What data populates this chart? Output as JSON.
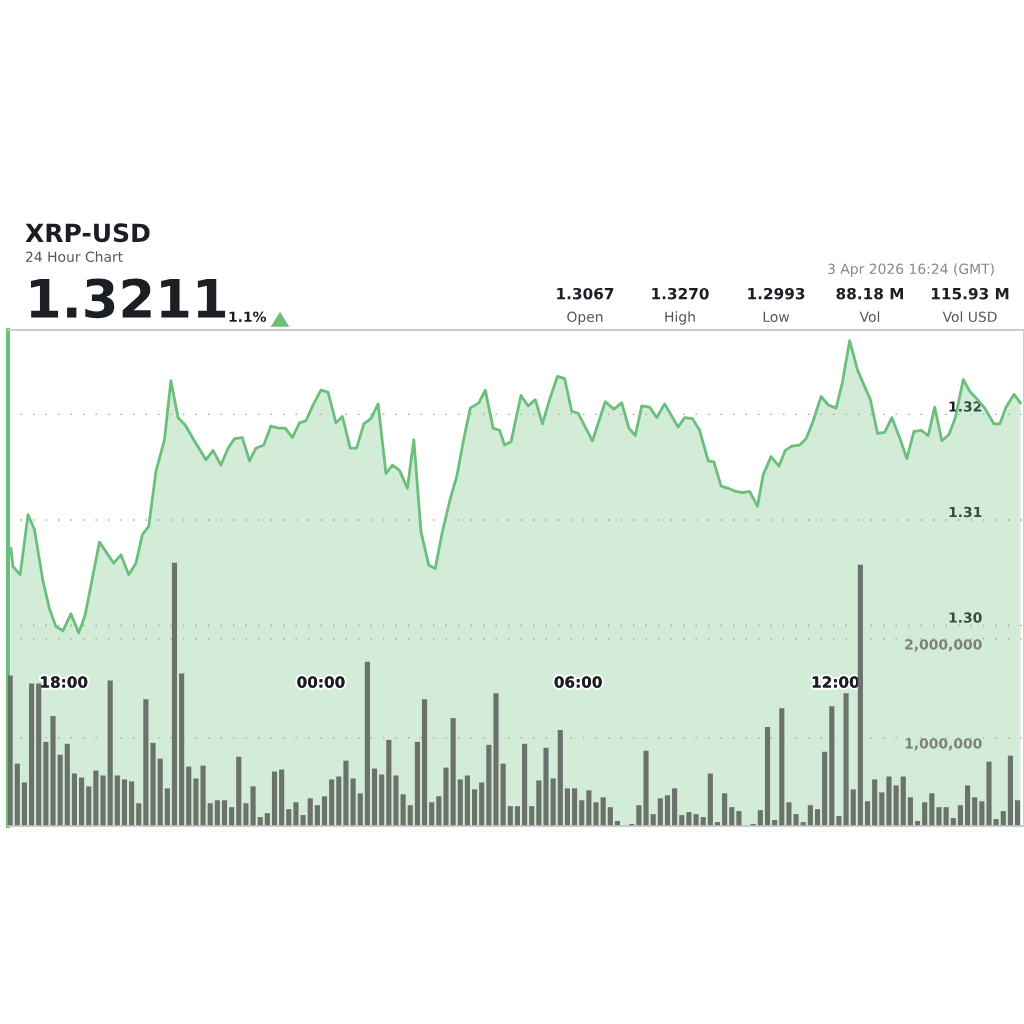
{
  "chart_data": {
    "type": "area",
    "title": "XRP-USD",
    "subtitle": "24 Hour Chart",
    "annotations": [
      "1.3211",
      "1.1%",
      "1.3067",
      "Open",
      "1.3270",
      "High",
      "1.2993",
      "Low",
      "88.18 M",
      "Vol",
      "115.93 M",
      "Vol USD",
      "3 Apr 2026 16:24 (GMT)"
    ],
    "xlim": [
      "2026-04-02T16:42",
      "2026-04-03T16:24"
    ],
    "xticks": [
      {
        "value": "2026-04-02T18:00",
        "label": "18:00"
      },
      {
        "value": "2026-04-03T00:00",
        "label": "00:00"
      },
      {
        "value": "2026-04-03T06:00",
        "label": "06:00"
      },
      {
        "value": "2026-04-03T12:00",
        "label": "12:00"
      }
    ],
    "ylim": [
      1.281,
      1.328
    ],
    "yticks": [
      {
        "value": 1.3,
        "label": "1.30"
      },
      {
        "value": 1.31,
        "label": "1.31"
      },
      {
        "value": 1.32,
        "label": "1.32"
      }
    ],
    "y2lim": [
      110000,
      5120000
    ],
    "y2ticks": [
      {
        "value": 1000000,
        "label": "1,000,000"
      },
      {
        "value": 2000000,
        "label": "2,000,000"
      }
    ],
    "grid": "y",
    "marker": "none",
    "line_style": "solid",
    "series": [
      {
        "color": "#6abf7b",
        "x": [
          "2026-04-02T16:46",
          "2026-04-02T16:49",
          "2026-04-02T16:59",
          "2026-04-02T17:10",
          "2026-04-02T17:19",
          "2026-04-02T17:31",
          "2026-04-02T17:40",
          "2026-04-02T17:49",
          "2026-04-02T17:59",
          "2026-04-02T18:10",
          "2026-04-02T18:21",
          "2026-04-02T18:30",
          "2026-04-02T18:50",
          "2026-04-02T19:10",
          "2026-04-02T19:20",
          "2026-04-02T19:31",
          "2026-04-02T19:41",
          "2026-04-02T19:50",
          "2026-04-02T19:59",
          "2026-04-02T20:09",
          "2026-04-02T20:21",
          "2026-04-02T20:30",
          "2026-04-02T20:40",
          "2026-04-02T20:50",
          "2026-04-02T21:02",
          "2026-04-02T21:19",
          "2026-04-02T21:29",
          "2026-04-02T21:40",
          "2026-04-02T21:50",
          "2026-04-02T21:59",
          "2026-04-02T22:10",
          "2026-04-02T22:20",
          "2026-04-02T22:29",
          "2026-04-02T22:40",
          "2026-04-02T22:50",
          "2026-04-02T23:00",
          "2026-04-02T23:10",
          "2026-04-02T23:20",
          "2026-04-02T23:30",
          "2026-04-02T23:39",
          "2026-04-02T23:49",
          "2026-04-03T00:00",
          "2026-04-03T00:10",
          "2026-04-03T00:21",
          "2026-04-03T00:30",
          "2026-04-03T00:41",
          "2026-04-03T00:50",
          "2026-04-03T01:00",
          "2026-04-03T01:10",
          "2026-04-03T01:20",
          "2026-04-03T01:31",
          "2026-04-03T01:40",
          "2026-04-03T01:50",
          "2026-04-03T02:01",
          "2026-04-03T02:10",
          "2026-04-03T02:20",
          "2026-04-03T02:31",
          "2026-04-03T02:40",
          "2026-04-03T02:50",
          "2026-04-03T03:01",
          "2026-04-03T03:10",
          "2026-04-03T03:20",
          "2026-04-03T03:29",
          "2026-04-03T03:41",
          "2026-04-03T03:50",
          "2026-04-03T04:01",
          "2026-04-03T04:10",
          "2026-04-03T04:17",
          "2026-04-03T04:26",
          "2026-04-03T04:40",
          "2026-04-03T04:50",
          "2026-04-03T05:00",
          "2026-04-03T05:10",
          "2026-04-03T05:20",
          "2026-04-03T05:31",
          "2026-04-03T05:41",
          "2026-04-03T05:51",
          "2026-04-03T06:00",
          "2026-04-03T06:20",
          "2026-04-03T06:38",
          "2026-04-03T06:50",
          "2026-04-03T07:01",
          "2026-04-03T07:11",
          "2026-04-03T07:20",
          "2026-04-03T07:29",
          "2026-04-03T07:40",
          "2026-04-03T07:50",
          "2026-04-03T08:01",
          "2026-04-03T08:20",
          "2026-04-03T08:29",
          "2026-04-03T08:40",
          "2026-04-03T08:50",
          "2026-04-03T09:02",
          "2026-04-03T09:10",
          "2026-04-03T09:20",
          "2026-04-03T09:30",
          "2026-04-03T09:41",
          "2026-04-03T09:50",
          "2026-04-03T10:00",
          "2026-04-03T10:11",
          "2026-04-03T10:19",
          "2026-04-03T10:30",
          "2026-04-03T10:41",
          "2026-04-03T10:50",
          "2026-04-03T10:59",
          "2026-04-03T11:10",
          "2026-04-03T11:19",
          "2026-04-03T11:28",
          "2026-04-03T11:40",
          "2026-04-03T11:50",
          "2026-04-03T12:01",
          "2026-04-03T12:10",
          "2026-04-03T12:20",
          "2026-04-03T12:31",
          "2026-04-03T12:40",
          "2026-04-03T12:49",
          "2026-04-03T12:59",
          "2026-04-03T13:09",
          "2026-04-03T13:19",
          "2026-04-03T13:31",
          "2026-04-03T13:40",
          "2026-04-03T13:50",
          "2026-04-03T14:00",
          "2026-04-03T14:10",
          "2026-04-03T14:19",
          "2026-04-03T14:29",
          "2026-04-03T14:39",
          "2026-04-03T14:48",
          "2026-04-03T14:59",
          "2026-04-03T15:08",
          "2026-04-03T15:19",
          "2026-04-03T15:29",
          "2026-04-03T15:42",
          "2026-04-03T15:50",
          "2026-04-03T15:59",
          "2026-04-03T16:10",
          "2026-04-03T16:19"
        ],
        "values": [
          1.3073,
          1.3056,
          1.3048,
          1.3105,
          1.3091,
          1.3042,
          1.3016,
          1.2999,
          1.2995,
          1.3011,
          1.2993,
          1.301,
          1.3079,
          1.3059,
          1.3067,
          1.3048,
          1.3059,
          1.3086,
          1.3094,
          1.3146,
          1.3176,
          1.3232,
          1.3197,
          1.319,
          1.3176,
          1.3157,
          1.3166,
          1.3152,
          1.3168,
          1.3177,
          1.3178,
          1.3156,
          1.3168,
          1.3171,
          1.3189,
          1.3187,
          1.3187,
          1.3178,
          1.3192,
          1.3194,
          1.3209,
          1.3223,
          1.3221,
          1.3192,
          1.3198,
          1.3168,
          1.3168,
          1.3191,
          1.3196,
          1.321,
          1.3144,
          1.3152,
          1.3147,
          1.313,
          1.3176,
          1.3089,
          1.3057,
          1.3054,
          1.3089,
          1.312,
          1.3141,
          1.3177,
          1.3206,
          1.3211,
          1.3223,
          1.3187,
          1.3185,
          1.3171,
          1.3174,
          1.3218,
          1.3208,
          1.3214,
          1.3191,
          1.3214,
          1.3236,
          1.3234,
          1.3203,
          1.3201,
          1.3175,
          1.3212,
          1.3205,
          1.3211,
          1.3187,
          1.318,
          1.3208,
          1.3207,
          1.3197,
          1.321,
          1.3188,
          1.3197,
          1.3196,
          1.3185,
          1.3156,
          1.3155,
          1.3132,
          1.313,
          1.3127,
          1.3126,
          1.3127,
          1.3113,
          1.3143,
          1.316,
          1.3151,
          1.3166,
          1.317,
          1.3171,
          1.3177,
          1.3192,
          1.3217,
          1.3209,
          1.3206,
          1.3231,
          1.327,
          1.3242,
          1.3228,
          1.3214,
          1.3182,
          1.3183,
          1.3197,
          1.3176,
          1.3158,
          1.3184,
          1.3185,
          1.318,
          1.3207,
          1.3175,
          1.3181,
          1.3197,
          1.3233,
          1.3222,
          1.3214,
          1.3206,
          1.3191,
          1.3191,
          1.3207,
          1.3219,
          1.3211
        ]
      },
      {
        "type": "bar",
        "axis": "y2",
        "color": "#6b716b",
        "x": [
          "2026-04-02T16:45",
          "2026-04-02T16:55",
          "2026-04-02T17:05",
          "2026-04-02T17:15",
          "2026-04-02T17:25",
          "2026-04-02T17:35",
          "2026-04-02T17:45",
          "2026-04-02T17:55",
          "2026-04-02T18:05",
          "2026-04-02T18:15",
          "2026-04-02T18:25",
          "2026-04-02T18:35",
          "2026-04-02T18:45",
          "2026-04-02T18:55",
          "2026-04-02T19:05",
          "2026-04-02T19:15",
          "2026-04-02T19:25",
          "2026-04-02T19:35",
          "2026-04-02T19:45",
          "2026-04-02T19:55",
          "2026-04-02T20:05",
          "2026-04-02T20:15",
          "2026-04-02T20:25",
          "2026-04-02T20:35",
          "2026-04-02T20:45",
          "2026-04-02T20:55",
          "2026-04-02T21:05",
          "2026-04-02T21:15",
          "2026-04-02T21:25",
          "2026-04-02T21:35",
          "2026-04-02T21:45",
          "2026-04-02T21:55",
          "2026-04-02T22:05",
          "2026-04-02T22:15",
          "2026-04-02T22:25",
          "2026-04-02T22:35",
          "2026-04-02T22:45",
          "2026-04-02T22:55",
          "2026-04-02T23:05",
          "2026-04-02T23:15",
          "2026-04-02T23:25",
          "2026-04-02T23:35",
          "2026-04-02T23:45",
          "2026-04-02T23:55",
          "2026-04-03T00:05",
          "2026-04-03T00:15",
          "2026-04-03T00:25",
          "2026-04-03T00:35",
          "2026-04-03T00:45",
          "2026-04-03T00:55",
          "2026-04-03T01:05",
          "2026-04-03T01:15",
          "2026-04-03T01:25",
          "2026-04-03T01:35",
          "2026-04-03T01:45",
          "2026-04-03T01:55",
          "2026-04-03T02:05",
          "2026-04-03T02:15",
          "2026-04-03T02:25",
          "2026-04-03T02:35",
          "2026-04-03T02:45",
          "2026-04-03T02:55",
          "2026-04-03T03:05",
          "2026-04-03T03:15",
          "2026-04-03T03:25",
          "2026-04-03T03:35",
          "2026-04-03T03:45",
          "2026-04-03T03:55",
          "2026-04-03T04:05",
          "2026-04-03T04:15",
          "2026-04-03T04:25",
          "2026-04-03T04:35",
          "2026-04-03T04:45",
          "2026-04-03T04:55",
          "2026-04-03T05:05",
          "2026-04-03T05:15",
          "2026-04-03T05:25",
          "2026-04-03T05:35",
          "2026-04-03T05:45",
          "2026-04-03T05:55",
          "2026-04-03T06:05",
          "2026-04-03T06:15",
          "2026-04-03T06:25",
          "2026-04-03T06:35",
          "2026-04-03T06:45",
          "2026-04-03T06:55",
          "2026-04-03T07:05",
          "2026-04-03T07:15",
          "2026-04-03T07:25",
          "2026-04-03T07:35",
          "2026-04-03T07:45",
          "2026-04-03T07:55",
          "2026-04-03T08:05",
          "2026-04-03T08:15",
          "2026-04-03T08:25",
          "2026-04-03T08:35",
          "2026-04-03T08:45",
          "2026-04-03T08:55",
          "2026-04-03T09:05",
          "2026-04-03T09:15",
          "2026-04-03T09:25",
          "2026-04-03T09:35",
          "2026-04-03T09:45",
          "2026-04-03T09:55",
          "2026-04-03T10:05",
          "2026-04-03T10:15",
          "2026-04-03T10:25",
          "2026-04-03T10:35",
          "2026-04-03T10:45",
          "2026-04-03T10:55",
          "2026-04-03T11:05",
          "2026-04-03T11:15",
          "2026-04-03T11:25",
          "2026-04-03T11:35",
          "2026-04-03T11:45",
          "2026-04-03T11:55",
          "2026-04-03T12:05",
          "2026-04-03T12:15",
          "2026-04-03T12:25",
          "2026-04-03T12:35",
          "2026-04-03T12:45",
          "2026-04-03T12:55",
          "2026-04-03T13:05",
          "2026-04-03T13:15",
          "2026-04-03T13:25",
          "2026-04-03T13:35",
          "2026-04-03T13:45",
          "2026-04-03T13:55",
          "2026-04-03T14:05",
          "2026-04-03T14:15",
          "2026-04-03T14:25",
          "2026-04-03T14:35",
          "2026-04-03T14:45",
          "2026-04-03T14:55",
          "2026-04-03T15:05",
          "2026-04-03T15:15",
          "2026-04-03T15:25",
          "2026-04-03T15:35",
          "2026-04-03T15:45",
          "2026-04-03T15:55",
          "2026-04-03T16:05",
          "2026-04-03T16:15"
        ],
        "values": [
          1630000,
          740000,
          550000,
          1550000,
          1550000,
          960000,
          1220000,
          830000,
          940000,
          640000,
          600000,
          510000,
          670000,
          620000,
          1580000,
          620000,
          580000,
          560000,
          340000,
          1390000,
          950000,
          790000,
          490000,
          2770000,
          1650000,
          710000,
          590000,
          720000,
          340000,
          370000,
          370000,
          300000,
          810000,
          340000,
          510000,
          200000,
          240000,
          660000,
          680000,
          280000,
          350000,
          220000,
          390000,
          320000,
          410000,
          580000,
          610000,
          770000,
          590000,
          440000,
          1770000,
          690000,
          630000,
          980000,
          620000,
          430000,
          320000,
          960000,
          1390000,
          350000,
          410000,
          700000,
          1200000,
          580000,
          620000,
          480000,
          550000,
          930000,
          1450000,
          740000,
          310000,
          310000,
          940000,
          310000,
          570000,
          900000,
          590000,
          1080000,
          490000,
          490000,
          370000,
          470000,
          350000,
          400000,
          300000,
          160000,
          null,
          130000,
          320000,
          870000,
          230000,
          390000,
          420000,
          490000,
          220000,
          250000,
          230000,
          200000,
          640000,
          150000,
          440000,
          300000,
          260000,
          null,
          130000,
          270000,
          1110000,
          170000,
          1300000,
          350000,
          230000,
          150000,
          320000,
          280000,
          860000,
          1320000,
          210000,
          1450000,
          480000,
          2750000,
          360000,
          580000,
          450000,
          610000,
          520000,
          610000,
          400000,
          160000,
          350000,
          440000,
          300000,
          300000,
          190000,
          320000,
          520000,
          400000,
          360000,
          760000,
          180000,
          260000,
          820000,
          370000
        ]
      }
    ]
  }
}
